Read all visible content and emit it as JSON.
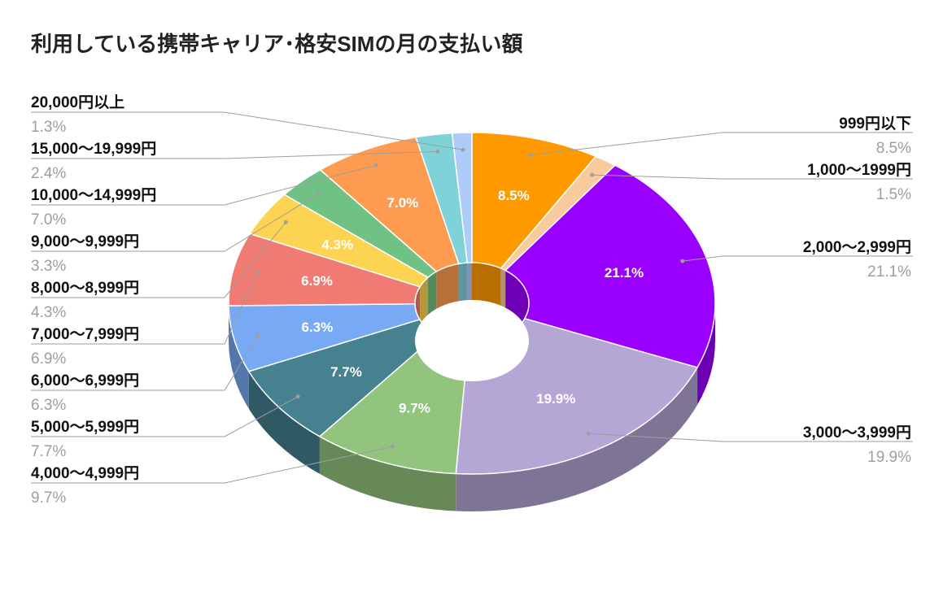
{
  "chart_data": {
    "type": "pie",
    "title": "利用している携帯キャリア･格安SIMの月の支払い額",
    "legend": "outside-labels",
    "slices": [
      {
        "label": "999円以下",
        "value": 8.5,
        "display": "8.5%",
        "color": "#ff9900"
      },
      {
        "label": "1,000〜1999円",
        "value": 1.5,
        "display": "1.5%",
        "color": "#f9cb9c"
      },
      {
        "label": "2,000〜2,999円",
        "value": 21.1,
        "display": "21.1%",
        "color": "#9900ff"
      },
      {
        "label": "3,000〜3,999円",
        "value": 19.9,
        "display": "19.9%",
        "color": "#b4a7d6"
      },
      {
        "label": "4,000〜4,999円",
        "value": 9.7,
        "display": "9.7%",
        "color": "#93c47d"
      },
      {
        "label": "5,000〜5,999円",
        "value": 7.7,
        "display": "7.7%",
        "color": "#45818e"
      },
      {
        "label": "6,000〜6,999円",
        "value": 6.3,
        "display": "6.3%",
        "color": "#78a9f4"
      },
      {
        "label": "7,000〜7,999円",
        "value": 6.9,
        "display": "6.9%",
        "color": "#f07b72"
      },
      {
        "label": "8,000〜8,999円",
        "value": 4.3,
        "display": "4.3%",
        "color": "#fdd352"
      },
      {
        "label": "9,000〜9,999円",
        "value": 3.3,
        "display": "3.3%",
        "color": "#6fc283"
      },
      {
        "label": "10,000〜14,999円",
        "value": 7.0,
        "display": "7.0%",
        "color": "#fd9b51"
      },
      {
        "label": "15,000〜19,999円",
        "value": 2.4,
        "display": "2.4%",
        "color": "#7ed2d8"
      },
      {
        "label": "20,000円以上",
        "value": 1.3,
        "display": "1.3%",
        "color": "#aecbfa"
      }
    ]
  }
}
